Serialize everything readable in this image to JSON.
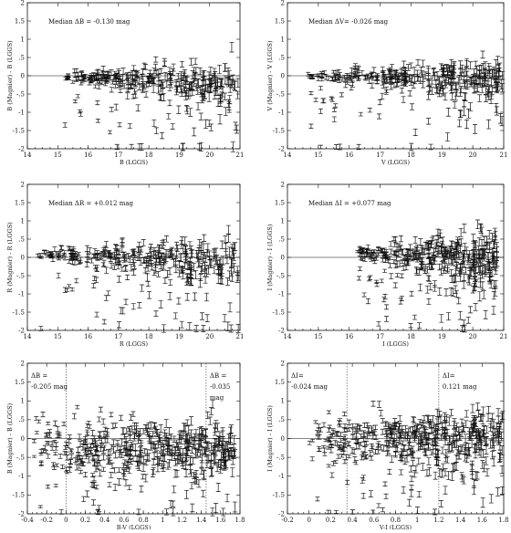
{
  "chart_data": [
    {
      "type": "scatter",
      "id": "p1",
      "xlabel": "B (LGGS)",
      "ylabel": "B (Magnier) - B (LGGS)",
      "xlim": [
        14,
        21
      ],
      "ylim": [
        -2,
        2
      ],
      "xticks": [
        "14",
        "15",
        "16",
        "17",
        "18",
        "19",
        "20",
        "21"
      ],
      "yticks": [
        "-2",
        "-1.5",
        "-1",
        "-.5",
        "0",
        ".5",
        "1",
        "1.5",
        "2"
      ],
      "annotation_lines": [
        "Median ΔB = -0.130 mag"
      ],
      "cloud": {
        "x_start": 15.2,
        "x_end": 21,
        "center_start": -0.02,
        "center_end": -0.25,
        "spread_start": 0.06,
        "spread_end": 0.35,
        "n": 360,
        "outlier_frac": 0.12
      },
      "vlines": [],
      "zero_line": 0
    },
    {
      "type": "scatter",
      "id": "p2",
      "xlabel": "V (LGGS)",
      "ylabel": "V (Magnier) - V (LGGS)",
      "xlim": [
        14,
        21
      ],
      "ylim": [
        -2,
        2
      ],
      "xticks": [
        "14",
        "15",
        "16",
        "17",
        "18",
        "19",
        "20",
        "21"
      ],
      "yticks": [
        "-2",
        "-1.5",
        "-1",
        "-.5",
        "0",
        ".5",
        "1",
        "1.5",
        "2"
      ],
      "annotation_lines": [
        "Median ΔV= -0.026 mag"
      ],
      "cloud": {
        "x_start": 14.6,
        "x_end": 21,
        "center_start": 0.0,
        "center_end": -0.08,
        "spread_start": 0.05,
        "spread_end": 0.3,
        "n": 380,
        "outlier_frac": 0.14
      },
      "vlines": [],
      "zero_line": 0
    },
    {
      "type": "scatter",
      "id": "p3",
      "xlabel": "R (LGGS)",
      "ylabel": "R (Magnier) - R (LGGS)",
      "xlim": [
        14,
        21
      ],
      "ylim": [
        -2,
        2
      ],
      "xticks": [
        "14",
        "15",
        "16",
        "17",
        "18",
        "19",
        "20",
        "21"
      ],
      "yticks": [
        "-2",
        "-1.5",
        "-1",
        "-.5",
        "0",
        ".5",
        "1",
        "1.5",
        "2"
      ],
      "annotation_lines": [
        "Median ΔR = +0.012 mag"
      ],
      "cloud": {
        "x_start": 14.3,
        "x_end": 21,
        "center_start": 0.08,
        "center_end": -0.1,
        "spread_start": 0.05,
        "spread_end": 0.4,
        "n": 380,
        "outlier_frac": 0.16
      },
      "vlines": [],
      "zero_line": 0
    },
    {
      "type": "scatter",
      "id": "p4",
      "xlabel": "I (LGGS)",
      "ylabel": "I (Magnier) - I (LGGS)",
      "xlim": [
        14,
        21
      ],
      "ylim": [
        -2,
        2
      ],
      "xticks": [
        "14",
        "15",
        "16",
        "17",
        "18",
        "19",
        "20",
        "21"
      ],
      "yticks": [
        "-2",
        "-1.5",
        "-1",
        "-.5",
        "0",
        ".5",
        "1",
        "1.5",
        "2"
      ],
      "annotation_lines": [
        "Median ΔI = +0.077 mag"
      ],
      "cloud": {
        "x_start": 16.2,
        "x_end": 20.8,
        "center_start": 0.12,
        "center_end": 0.0,
        "spread_start": 0.08,
        "spread_end": 0.4,
        "n": 420,
        "outlier_frac": 0.16
      },
      "vlines": [],
      "zero_line": 0
    },
    {
      "type": "scatter",
      "id": "p5",
      "xlabel": "B-V (LGGS)",
      "ylabel": "B (Magnier) - B (LGGS)",
      "xlim": [
        -0.4,
        1.8
      ],
      "ylim": [
        -2,
        2
      ],
      "xticks": [
        "-0.4",
        "-0.2",
        "0",
        "0.2",
        "0.4",
        "0.6",
        "0.8",
        "1",
        "1.2",
        "1.4",
        "1.6",
        "1.8"
      ],
      "yticks": [
        "-2",
        "-1.5",
        "-1",
        "-.5",
        "0",
        ".5",
        "1",
        "1.5",
        "2"
      ],
      "annotation_lines": [
        "ΔB =",
        "-0.205 mag"
      ],
      "annotation2_lines": [
        "ΔB =",
        "-0.035",
        "mag"
      ],
      "cloud": {
        "x_start": -0.35,
        "x_end": 1.75,
        "center_start": -0.15,
        "center_end": -0.2,
        "spread_start": 0.35,
        "spread_end": 0.35,
        "n": 520,
        "outlier_frac": 0.18
      },
      "vlines": [
        0.0,
        1.45
      ],
      "zero_line": 0
    },
    {
      "type": "scatter",
      "id": "p6",
      "xlabel": "V-I (LGGS)",
      "ylabel": "I (Magnier) - I (LGGS)",
      "xlim": [
        -0.2,
        1.8
      ],
      "ylim": [
        -2,
        2
      ],
      "xticks": [
        "-0.2",
        "0",
        "0.2",
        "0.4",
        "0.6",
        "0.8",
        "1",
        "1.2",
        "1.4",
        "1.6",
        "1.8"
      ],
      "yticks": [
        "-2",
        "-1.5",
        "-1",
        "-.5",
        "0",
        ".5",
        "1",
        "1.5",
        "2"
      ],
      "annotation_lines": [
        "ΔI=",
        "-0.024 mag"
      ],
      "annotation2_lines": [
        "ΔI=",
        "0.121 mag"
      ],
      "cloud": {
        "x_start": 0.0,
        "x_end": 1.8,
        "center_start": 0.0,
        "center_end": 0.15,
        "spread_start": 0.3,
        "spread_end": 0.35,
        "n": 520,
        "outlier_frac": 0.18
      },
      "vlines": [
        0.35,
        1.2
      ],
      "zero_line": 0
    }
  ]
}
